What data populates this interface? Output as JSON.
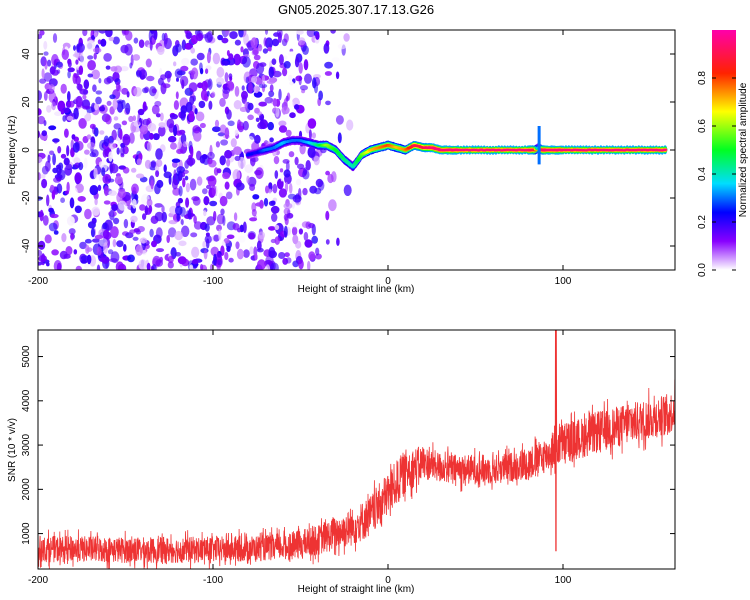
{
  "title": "GN05.2025.307.17.13.G26",
  "chart_data": [
    {
      "type": "heatmap",
      "xlabel": "Height of straight line (km)",
      "ylabel": "Frequency (Hz)",
      "xlim": [
        -200,
        164
      ],
      "ylim": [
        -50,
        50
      ],
      "xticks": [
        "-200",
        "-100",
        "0",
        "100"
      ],
      "xtick_values": [
        -200,
        -100,
        0,
        100
      ],
      "yticks": [
        "-40",
        "-20",
        "0",
        "20",
        "40"
      ],
      "ytick_values": [
        -40,
        -20,
        0,
        20,
        40
      ],
      "colorbar": {
        "label": "Normalized spectral amplitude",
        "ticks": [
          "0.0",
          "0.2",
          "0.4",
          "0.6",
          "0.8"
        ],
        "tick_values": [
          0.0,
          0.2,
          0.4,
          0.6,
          0.8
        ],
        "range": [
          0,
          1
        ]
      },
      "ridge": {
        "x": [
          -80,
          -75,
          -70,
          -65,
          -60,
          -55,
          -50,
          -45,
          -40,
          -35,
          -30,
          -25,
          -20,
          -15,
          -10,
          -5,
          0,
          5,
          10,
          15,
          20,
          25,
          30,
          40,
          60,
          80,
          84,
          86,
          88,
          90,
          100,
          120,
          140,
          160
        ],
        "frequency": [
          -2,
          -1,
          0,
          1,
          3,
          4,
          4,
          3,
          2,
          2,
          0,
          -4,
          -7,
          -2,
          0,
          1,
          2,
          1,
          0,
          2,
          1,
          1,
          0,
          0,
          0,
          0,
          0,
          1,
          0,
          0,
          0,
          0,
          0,
          0
        ],
        "amplitude": [
          0.25,
          0.22,
          0.3,
          0.3,
          0.35,
          0.3,
          0.3,
          0.35,
          0.45,
          0.6,
          0.5,
          0.45,
          0.4,
          0.55,
          0.7,
          0.75,
          0.8,
          0.7,
          0.75,
          0.9,
          0.9,
          0.95,
          0.95,
          0.95,
          0.95,
          0.95,
          0.9,
          0.3,
          0.9,
          0.95,
          0.95,
          0.95,
          0.95,
          0.95
        ]
      },
      "noise_region": {
        "x_range": [
          -200,
          -45
        ],
        "amplitude_range": [
          0.0,
          0.25
        ]
      }
    },
    {
      "type": "line",
      "xlabel": "Height of straight line (km)",
      "ylabel": "SNR (10 * v/v)",
      "xlim": [
        -200,
        164
      ],
      "ylim": [
        200,
        5600
      ],
      "xticks": [
        "-200",
        "-100",
        "0",
        "100"
      ],
      "xtick_values": [
        -200,
        -100,
        0,
        100
      ],
      "yticks": [
        "1000",
        "2000",
        "3000",
        "4000",
        "5000"
      ],
      "ytick_values": [
        1000,
        2000,
        3000,
        4000,
        5000
      ],
      "color": "#ee3333",
      "series": [
        {
          "x": [
            -200,
            -180,
            -160,
            -140,
            -120,
            -100,
            -80,
            -70,
            -60,
            -50,
            -40,
            -30,
            -20,
            -10,
            0,
            10,
            20,
            30,
            40,
            50,
            60,
            70,
            80,
            90,
            95,
            100,
            110,
            120,
            130,
            140,
            150,
            160,
            164
          ],
          "values": [
            650,
            650,
            640,
            620,
            630,
            640,
            660,
            680,
            700,
            750,
            850,
            1000,
            1150,
            1400,
            1900,
            2400,
            2600,
            2500,
            2450,
            2450,
            2450,
            2500,
            2600,
            2750,
            2900,
            3050,
            3150,
            3300,
            3400,
            3500,
            3600,
            3700,
            3800
          ],
          "noise_amplitude": [
            350,
            350,
            350,
            350,
            350,
            350,
            350,
            350,
            350,
            400,
            400,
            450,
            500,
            550,
            600,
            600,
            450,
            400,
            400,
            400,
            400,
            400,
            450,
            450,
            500,
            550,
            550,
            550,
            550,
            550,
            550,
            550,
            550
          ]
        }
      ],
      "annotations": [
        {
          "x": 96,
          "spike_high": 5600,
          "spike_low": 600
        }
      ]
    }
  ]
}
